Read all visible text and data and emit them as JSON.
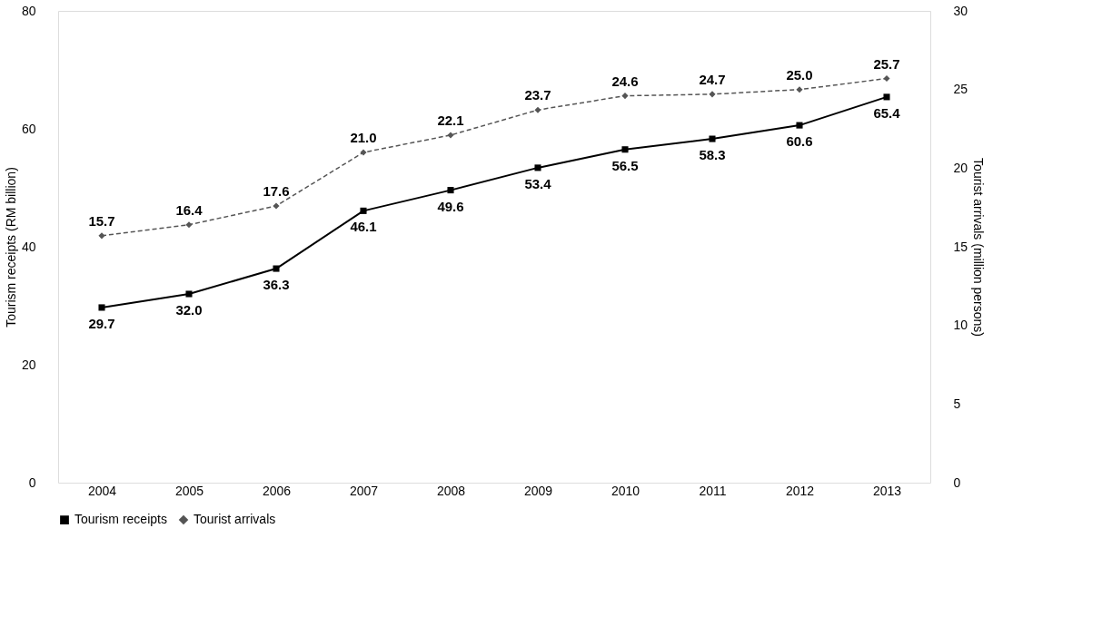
{
  "chart_data": {
    "type": "line",
    "ylabel": "Tourism receipts (RM billion)",
    "y2label": "Tourist arrivals (million persons)",
    "categories": [
      "2004",
      "2005",
      "2006",
      "2007",
      "2008",
      "2009",
      "2010",
      "2011",
      "2012",
      "2013"
    ],
    "series": [
      {
        "name": "Tourism receipts",
        "color": "#000000",
        "marker": "square",
        "line_style": "solid",
        "values": [
          29.7,
          32.0,
          36.3,
          46.1,
          49.6,
          53.4,
          56.5,
          58.3,
          60.6,
          65.4
        ],
        "value_labels": [
          "29.7",
          "32.0",
          "36.3",
          "46.1",
          "49.6",
          "53.4",
          "56.5",
          "58.3",
          "60.6",
          "65.4"
        ]
      },
      {
        "name": "Tourist arrivals",
        "color": "#555555",
        "marker": "diamond",
        "line_style": "dashed",
        "axis": "y2",
        "values": [
          15.7,
          16.4,
          17.6,
          21.0,
          22.1,
          23.7,
          24.6,
          24.7,
          25.0,
          25.7
        ],
        "value_labels": [
          "15.7",
          "16.4",
          "17.6",
          "21.0",
          "22.1",
          "23.7",
          "24.6",
          "24.7",
          "25.0",
          "25.7"
        ]
      }
    ],
    "ylim": [
      0,
      80
    ],
    "yticks": [
      0,
      20,
      40,
      60,
      80
    ],
    "y2lim": [
      0,
      30
    ],
    "y2ticks": [
      0,
      5,
      10,
      15,
      20,
      25,
      30
    ],
    "grid": false,
    "legend": "bottom"
  }
}
